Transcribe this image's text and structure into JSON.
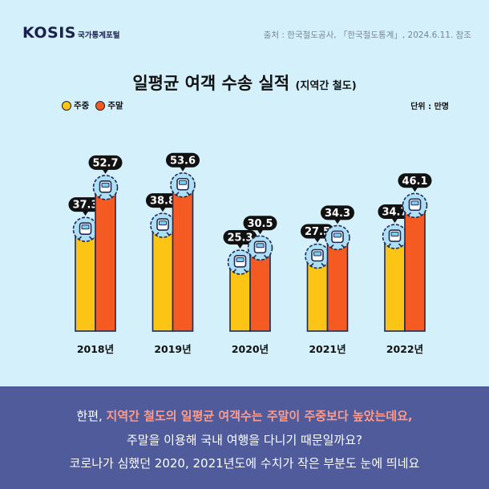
{
  "header": {
    "logo": "KOSIS",
    "logo_sub": "국가통계포털",
    "source": "출처 : 한국철도공사, 「한국철도통계」, 2024.6.11. 참조"
  },
  "colors": {
    "weekday": "#fcc414",
    "weekend": "#f55a22",
    "bg": "#d3f0fb",
    "footer": "#4f5b9a",
    "highlight": "#ff9b8a"
  },
  "legend": {
    "weekday": "주중",
    "weekend": "주말"
  },
  "unit": "단위 : 만명",
  "chart_data": {
    "type": "bar",
    "title": "일평균 여객 수송 실적",
    "subtitle": "(지역간 철도)",
    "categories": [
      "2018년",
      "2019년",
      "2020년",
      "2021년",
      "2022년"
    ],
    "series": [
      {
        "name": "주중",
        "values": [
          37.3,
          38.8,
          25.3,
          27.5,
          34.7
        ],
        "value_labels": [
          "37.3",
          "38.8",
          "25.3",
          "27.5",
          "34.7"
        ]
      },
      {
        "name": "주말",
        "values": [
          52.7,
          53.6,
          30.5,
          34.3,
          46.1
        ],
        "value_labels": [
          "52.7",
          "53.6",
          "30.5",
          "34.3",
          "46.1"
        ]
      }
    ],
    "xlabel": "",
    "ylabel": "",
    "grid": false,
    "icon": "train-icon"
  },
  "footer": {
    "line1_pre": "한편, ",
    "line1_hl": "지역간 철도의 일평균 여객수는 주말이 주중보다 높았는데요,",
    "line2": "주말을 이용해 국내 여행을 다니기 때문일까요?",
    "line3": "코로나가 심했던 2020, 2021년도에 수치가 작은 부분도 눈에 띄네요"
  }
}
